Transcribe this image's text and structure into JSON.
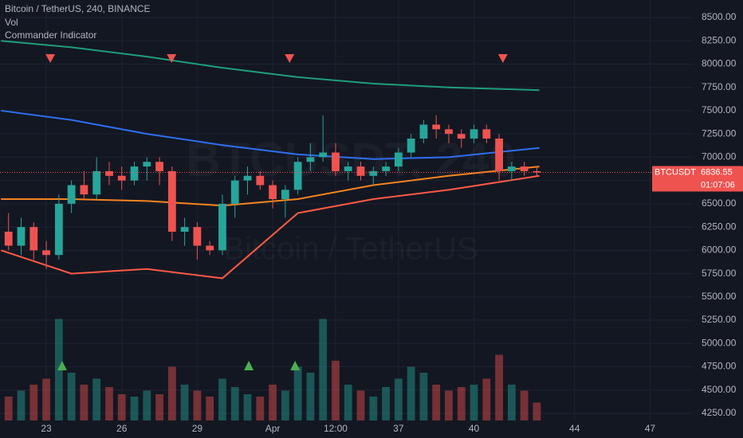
{
  "chart_data": {
    "type": "candlestick",
    "title": "Bitcoin / TetherUS, 240, BINANCE",
    "indicators": [
      "Vol",
      "Commander Indicator"
    ],
    "watermark": {
      "symbol": "BTCUSDT, 240",
      "name": "Bitcoin / TetherUS"
    },
    "x": [
      21.5,
      22,
      22.5,
      23,
      23.5,
      24,
      24.5,
      25,
      25.5,
      26,
      26.5,
      27,
      27.5,
      28,
      28.5,
      29,
      29.5,
      30,
      30.5,
      31,
      31.5,
      32,
      32.5,
      33,
      33.5,
      34,
      34.5,
      35,
      35.5,
      36,
      36.5,
      37,
      37.5,
      38,
      38.5,
      39,
      39.5,
      40,
      40.5,
      41,
      41.5,
      42,
      42.5
    ],
    "open": [
      6200,
      6050,
      6250,
      6000,
      5950,
      6500,
      6700,
      6600,
      6850,
      6800,
      6750,
      6900,
      6950,
      6850,
      6200,
      6250,
      6050,
      6000,
      6500,
      6750,
      6800,
      6700,
      6550,
      6650,
      6950,
      7000,
      7050,
      6850,
      6900,
      6800,
      6850,
      6900,
      7050,
      7200,
      7350,
      7300,
      7250,
      7200,
      7300,
      7200,
      6850,
      6900,
      6850
    ],
    "high": [
      6400,
      6350,
      6300,
      6100,
      6600,
      6750,
      6850,
      7000,
      6950,
      6900,
      6950,
      7000,
      7000,
      6900,
      6350,
      6300,
      6100,
      6600,
      6800,
      6900,
      6850,
      6750,
      6700,
      7000,
      7150,
      7450,
      7150,
      6950,
      6950,
      6900,
      6950,
      7100,
      7250,
      7400,
      7450,
      7350,
      7300,
      7350,
      7350,
      7250,
      6950,
      6950,
      6900
    ],
    "low": [
      6000,
      5950,
      5900,
      5800,
      5900,
      6400,
      6550,
      6550,
      6700,
      6650,
      6700,
      6750,
      6700,
      6100,
      6050,
      5900,
      5950,
      5950,
      6350,
      6600,
      6650,
      6450,
      6350,
      6600,
      6850,
      6950,
      6800,
      6750,
      6750,
      6700,
      6800,
      6850,
      7000,
      7150,
      7200,
      7150,
      7100,
      7150,
      7150,
      6750,
      6750,
      6800,
      6800
    ],
    "close": [
      6050,
      6250,
      6000,
      5950,
      6500,
      6700,
      6600,
      6850,
      6800,
      6750,
      6900,
      6950,
      6850,
      6200,
      6250,
      6050,
      6000,
      6500,
      6750,
      6800,
      6700,
      6550,
      6650,
      6950,
      7000,
      7050,
      6850,
      6900,
      6800,
      6850,
      6900,
      7050,
      7200,
      7350,
      7300,
      7250,
      7200,
      7300,
      7200,
      6850,
      6900,
      6850,
      6836.55
    ],
    "volume": [
      20,
      25,
      30,
      35,
      85,
      40,
      30,
      35,
      28,
      22,
      20,
      25,
      22,
      45,
      30,
      25,
      20,
      35,
      28,
      22,
      20,
      30,
      25,
      45,
      40,
      85,
      50,
      30,
      25,
      20,
      28,
      35,
      45,
      40,
      30,
      25,
      28,
      30,
      35,
      55,
      30,
      25,
      15
    ],
    "vlim": [
      0,
      100
    ],
    "up_color": "#26a69a",
    "down_color": "#ef5350",
    "lines": {
      "x": [
        21.2,
        24,
        27,
        30,
        33,
        36,
        39,
        42.6
      ],
      "series": [
        {
          "color": "#1e9e7a",
          "values": [
            8250,
            8180,
            8080,
            7960,
            7860,
            7790,
            7750,
            7720
          ]
        },
        {
          "color": "#2e6ff0",
          "values": [
            7500,
            7400,
            7250,
            7130,
            7030,
            6980,
            7000,
            7100
          ]
        },
        {
          "color": "#f5841f",
          "values": [
            6550,
            6550,
            6530,
            6480,
            6550,
            6700,
            6800,
            6900
          ]
        },
        {
          "color": "#ff5a45",
          "values": [
            6000,
            5750,
            5800,
            5700,
            6400,
            6550,
            6650,
            6800
          ]
        }
      ]
    },
    "sell_signals": [
      23.16,
      27.98,
      32.67,
      41.15
    ],
    "buy_signals": [
      23.63,
      31.05,
      32.89
    ],
    "sell_color": "#ef5350",
    "buy_color": "#4caf50",
    "last_price": {
      "value": 6836.55,
      "symbol": "BTCUSDT",
      "countdown": "01:07:06"
    },
    "xlim": [
      21.16,
      48.73
    ],
    "ylim": [
      4173,
      8688
    ],
    "grid": true,
    "xticks": [
      23,
      26,
      29,
      {
        "value": 32,
        "label": "Apr"
      },
      {
        "value": 34.5,
        "label": "12:00"
      },
      37,
      40,
      44,
      47
    ],
    "yticks": [
      {
        "value": 4250,
        "label": "4250.00"
      },
      {
        "value": 4500,
        "label": "4500.00"
      },
      {
        "value": 4750,
        "label": "4750.00"
      },
      {
        "value": 5000,
        "label": "5000.00"
      },
      {
        "value": 5250,
        "label": "5250.00"
      },
      {
        "value": 5500,
        "label": "5500.00"
      },
      {
        "value": 5750,
        "label": "5750.00"
      },
      {
        "value": 6000,
        "label": "6000.00"
      },
      {
        "value": 6250,
        "label": "6250.00"
      },
      {
        "value": 6500,
        "label": "6500.00"
      },
      {
        "value": 6750,
        "label": "6750.00"
      },
      {
        "value": 7000,
        "label": "7000.00"
      },
      {
        "value": 7250,
        "label": "7250.00"
      },
      {
        "value": 7500,
        "label": "7500.00"
      },
      {
        "value": 7750,
        "label": "7750.00"
      },
      {
        "value": 8000,
        "label": "8000.00"
      },
      {
        "value": 8250,
        "label": "8250.00"
      },
      {
        "value": 8500,
        "label": "8500.00"
      }
    ]
  }
}
